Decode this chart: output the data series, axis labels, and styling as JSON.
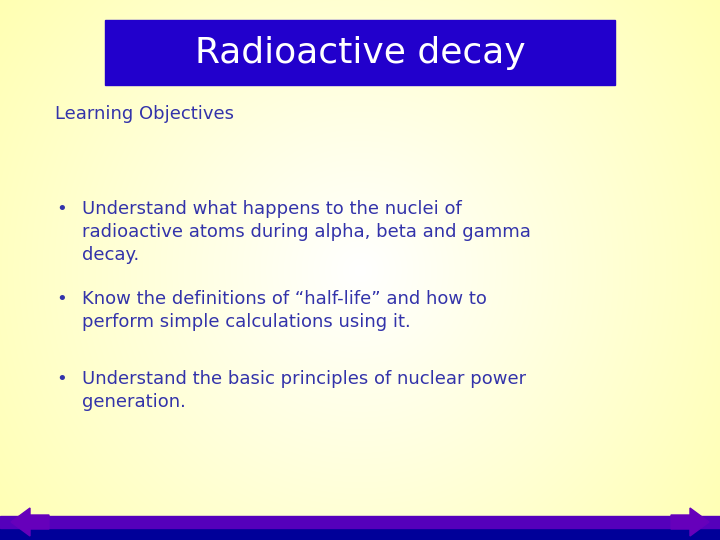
{
  "title": "Radioactive decay",
  "title_bg_color": "#2200CC",
  "title_text_color": "#FFFFFF",
  "background_color": "#FFFF88",
  "text_color": "#3333AA",
  "section_label": "Learning Objectives",
  "bullets": [
    "Understand what happens to the nuclei of\nradioactive atoms during alpha, beta and gamma\ndecay.",
    "Know the definitions of “half-life” and how to\nperform simple calculations using it.",
    "Understand the basic principles of nuclear power\ngeneration."
  ],
  "bottom_bar_color": "#5500BB",
  "bottom_strip_color": "#000099",
  "arrow_color": "#6600BB",
  "figsize": [
    7.2,
    5.4
  ],
  "dpi": 100
}
